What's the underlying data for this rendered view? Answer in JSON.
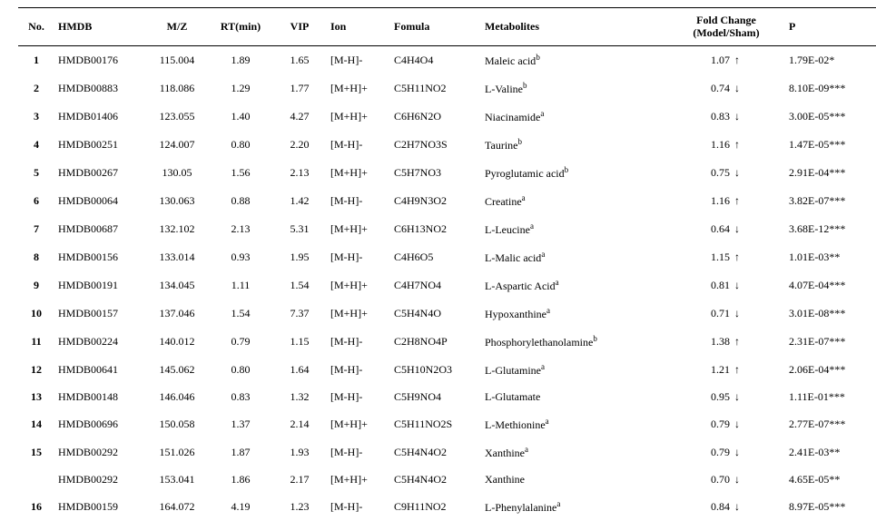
{
  "columns": {
    "no": "No.",
    "hmdb": "HMDB",
    "mz": "M/Z",
    "rt": "RT(min)",
    "vip": "VIP",
    "ion": "Ion",
    "formula": "Fomula",
    "metabolites": "Metabolites",
    "foldchange_l1": "Fold Change",
    "foldchange_l2": "(Model/Sham)",
    "p": "P"
  },
  "rows": [
    {
      "no": "1",
      "hmdb": "HMDB00176",
      "mz": "115.004",
      "rt": "1.89",
      "vip": "1.65",
      "ion": "[M-H]-",
      "formula": "C4H4O4",
      "met": "Maleic acid",
      "sup": "b",
      "fc": "1.07",
      "dir": "up",
      "p": "1.79E-02*"
    },
    {
      "no": "2",
      "hmdb": "HMDB00883",
      "mz": "118.086",
      "rt": "1.29",
      "vip": "1.77",
      "ion": "[M+H]+",
      "formula": "C5H11NO2",
      "met": "L-Valine",
      "sup": "b",
      "fc": "0.74",
      "dir": "down",
      "p": "8.10E-09***"
    },
    {
      "no": "3",
      "hmdb": "HMDB01406",
      "mz": "123.055",
      "rt": "1.40",
      "vip": "4.27",
      "ion": "[M+H]+",
      "formula": "C6H6N2O",
      "met": "Niacinamide",
      "sup": "a",
      "fc": "0.83",
      "dir": "down",
      "p": "3.00E-05***"
    },
    {
      "no": "4",
      "hmdb": "HMDB00251",
      "mz": "124.007",
      "rt": "0.80",
      "vip": "2.20",
      "ion": "[M-H]-",
      "formula": "C2H7NO3S",
      "met": "Taurine",
      "sup": "b",
      "fc": "1.16",
      "dir": "up",
      "p": "1.47E-05***"
    },
    {
      "no": "5",
      "hmdb": "HMDB00267",
      "mz": "130.05",
      "rt": "1.56",
      "vip": "2.13",
      "ion": "[M+H]+",
      "formula": "C5H7NO3",
      "met": "Pyroglutamic acid",
      "sup": "b",
      "fc": "0.75",
      "dir": "down",
      "p": "2.91E-04***"
    },
    {
      "no": "6",
      "hmdb": "HMDB00064",
      "mz": "130.063",
      "rt": "0.88",
      "vip": "1.42",
      "ion": "[M-H]-",
      "formula": "C4H9N3O2",
      "met": "Creatine",
      "sup": "a",
      "fc": "1.16",
      "dir": "up",
      "p": "3.82E-07***"
    },
    {
      "no": "7",
      "hmdb": "HMDB00687",
      "mz": "132.102",
      "rt": "2.13",
      "vip": "5.31",
      "ion": "[M+H]+",
      "formula": "C6H13NO2",
      "met": "L-Leucine",
      "sup": "a",
      "fc": "0.64",
      "dir": "down",
      "p": "3.68E-12***"
    },
    {
      "no": "8",
      "hmdb": "HMDB00156",
      "mz": "133.014",
      "rt": "0.93",
      "vip": "1.95",
      "ion": "[M-H]-",
      "formula": "C4H6O5",
      "met": "L-Malic acid",
      "sup": "a",
      "fc": "1.15",
      "dir": "up",
      "p": "1.01E-03**"
    },
    {
      "no": "9",
      "hmdb": "HMDB00191",
      "mz": "134.045",
      "rt": "1.11",
      "vip": "1.54",
      "ion": "[M+H]+",
      "formula": "C4H7NO4",
      "met": "L-Aspartic Acid",
      "sup": "a",
      "fc": "0.81",
      "dir": "down",
      "p": "4.07E-04***"
    },
    {
      "no": "10",
      "hmdb": "HMDB00157",
      "mz": "137.046",
      "rt": "1.54",
      "vip": "7.37",
      "ion": "[M+H]+",
      "formula": "C5H4N4O",
      "met": "Hypoxanthine",
      "sup": "a",
      "fc": "0.71",
      "dir": "down",
      "p": "3.01E-08***"
    },
    {
      "no": "11",
      "hmdb": "HMDB00224",
      "mz": "140.012",
      "rt": "0.79",
      "vip": "1.15",
      "ion": "[M-H]-",
      "formula": "C2H8NO4P",
      "met": "Phosphorylethanolamine",
      "sup": "b",
      "fc": "1.38",
      "dir": "up",
      "p": "2.31E-07***"
    },
    {
      "no": "12",
      "hmdb": "HMDB00641",
      "mz": "145.062",
      "rt": "0.80",
      "vip": "1.64",
      "ion": "[M-H]-",
      "formula": "C5H10N2O3",
      "met": "L-Glutamine",
      "sup": "a",
      "fc": "1.21",
      "dir": "up",
      "p": "2.06E-04***"
    },
    {
      "no": "13",
      "hmdb": "HMDB00148",
      "mz": "146.046",
      "rt": "0.83",
      "vip": "1.32",
      "ion": "[M-H]-",
      "formula": "C5H9NO4",
      "met": "L-Glutamate",
      "sup": "",
      "fc": "0.95",
      "dir": "down",
      "p": "1.11E-01***"
    },
    {
      "no": "14",
      "hmdb": "HMDB00696",
      "mz": "150.058",
      "rt": "1.37",
      "vip": "2.14",
      "ion": "[M+H]+",
      "formula": "C5H11NO2S",
      "met": "L-Methionine",
      "sup": "a",
      "fc": "0.79",
      "dir": "down",
      "p": "2.77E-07***"
    },
    {
      "no": "15",
      "hmdb": "HMDB00292",
      "mz": "151.026",
      "rt": "1.87",
      "vip": "1.93",
      "ion": "[M-H]-",
      "formula": "C5H4N4O2",
      "met": "Xanthine",
      "sup": "a",
      "fc": "0.79",
      "dir": "down",
      "p": "2.41E-03**"
    },
    {
      "no": "",
      "hmdb": "HMDB00292",
      "mz": "153.041",
      "rt": "1.86",
      "vip": "2.17",
      "ion": "[M+H]+",
      "formula": "C5H4N4O2",
      "met": "Xanthine",
      "sup": "",
      "fc": "0.70",
      "dir": "down",
      "p": "4.65E-05**"
    },
    {
      "no": "16",
      "hmdb": "HMDB00159",
      "mz": "164.072",
      "rt": "4.19",
      "vip": "1.23",
      "ion": "[M-H]-",
      "formula": "C9H11NO2",
      "met": "L-Phenylalanine",
      "sup": "a",
      "fc": "0.84",
      "dir": "down",
      "p": "8.97E-05***"
    }
  ],
  "arrows": {
    "up": "↑",
    "down": "↓"
  }
}
